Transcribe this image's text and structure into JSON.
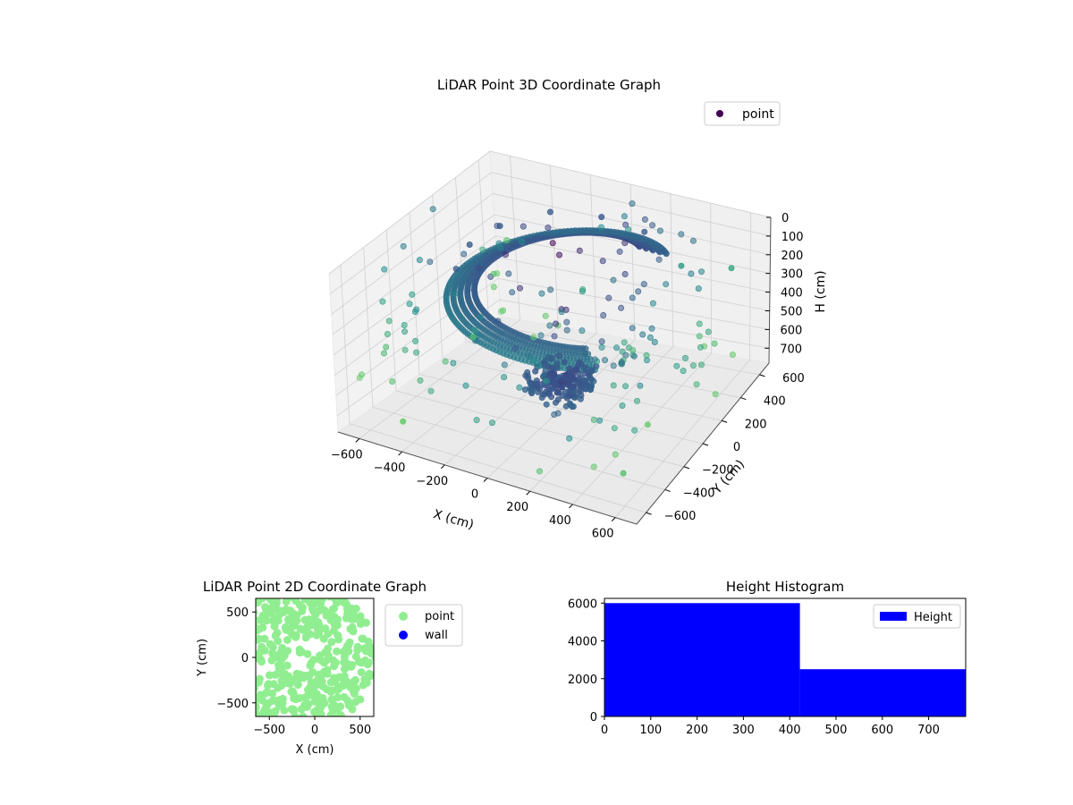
{
  "chart_data": [
    {
      "type": "scatter3d",
      "title": "LiDAR Point 3D Coordinate Graph",
      "xlabel": "X (cm)",
      "ylabel": "Y (cm)",
      "zlabel": "H (cm)",
      "xlim": [
        -700,
        700
      ],
      "ylim": [
        -700,
        700
      ],
      "zlim": [
        0,
        780
      ],
      "z_inverted": true,
      "xticks": [
        -600,
        -400,
        -200,
        0,
        200,
        400,
        600
      ],
      "yticks": [
        -600,
        -400,
        -200,
        0,
        200,
        400,
        600
      ],
      "zticks": [
        0,
        100,
        200,
        300,
        400,
        500,
        600,
        700
      ],
      "grid": true,
      "colormap": "viridis",
      "legend": {
        "placement": "top-right",
        "entries": [
          {
            "label": "point",
            "color": "#440154"
          }
        ]
      },
      "series": [
        {
          "name": "point",
          "description_of_clusters": [
            "ring near ceiling at radius ~420-560 cm",
            "block near origin at height ~650 cm",
            "scattered points at floor and mid heights"
          ],
          "sample_points": [
            {
              "x": 0,
              "y": 420,
              "h": 45
            },
            {
              "x": -230,
              "y": 380,
              "h": 55
            },
            {
              "x": -380,
              "y": 200,
              "h": 80
            },
            {
              "x": -420,
              "y": 0,
              "h": 95
            },
            {
              "x": -380,
              "y": -200,
              "h": 120
            },
            {
              "x": -260,
              "y": -330,
              "h": 140
            },
            {
              "x": 230,
              "y": 380,
              "h": 50
            },
            {
              "x": 380,
              "y": 250,
              "h": 60
            },
            {
              "x": 0,
              "y": 0,
              "h": 650
            },
            {
              "x": 100,
              "y": 50,
              "h": 660
            },
            {
              "x": -80,
              "y": 80,
              "h": 640
            },
            {
              "x": 50,
              "y": -80,
              "h": 670
            },
            {
              "x": 600,
              "y": 500,
              "h": 200
            },
            {
              "x": 300,
              "y": 600,
              "h": 300
            },
            {
              "x": -500,
              "y": -500,
              "h": 750
            },
            {
              "x": 500,
              "y": -400,
              "h": 760
            },
            {
              "x": 700,
              "y": -600,
              "h": 420
            },
            {
              "x": -600,
              "y": 300,
              "h": 700
            }
          ]
        }
      ]
    },
    {
      "type": "scatter",
      "title": "LiDAR Point 2D Coordinate Graph",
      "xlabel": "X (cm)",
      "ylabel": "Y (cm)",
      "xlim": [
        -650,
        650
      ],
      "ylim": [
        -650,
        650
      ],
      "xticks": [
        -500,
        0,
        500
      ],
      "yticks": [
        -500,
        0,
        500
      ],
      "legend": {
        "placement": "outside-right",
        "entries": [
          {
            "label": "point",
            "color": "#90EE90"
          },
          {
            "label": "wall",
            "color": "#0000FF"
          }
        ]
      },
      "series": [
        {
          "name": "point",
          "color": "#90EE90"
        },
        {
          "name": "wall",
          "color": "#0000FF",
          "points": []
        }
      ]
    },
    {
      "type": "bar",
      "title": "Height Histogram",
      "xlim": [
        0,
        780
      ],
      "ylim": [
        0,
        6250
      ],
      "xticks": [
        0,
        100,
        200,
        300,
        400,
        500,
        600,
        700
      ],
      "yticks": [
        0,
        2000,
        4000,
        6000
      ],
      "legend": {
        "placement": "top-right",
        "entries": [
          {
            "label": "Height",
            "color": "#0000FF"
          }
        ]
      },
      "bins": [
        {
          "start": 0,
          "end": 422,
          "count": 6000
        },
        {
          "start": 422,
          "end": 780,
          "count": 2500
        }
      ],
      "color": "#0000FF"
    }
  ]
}
